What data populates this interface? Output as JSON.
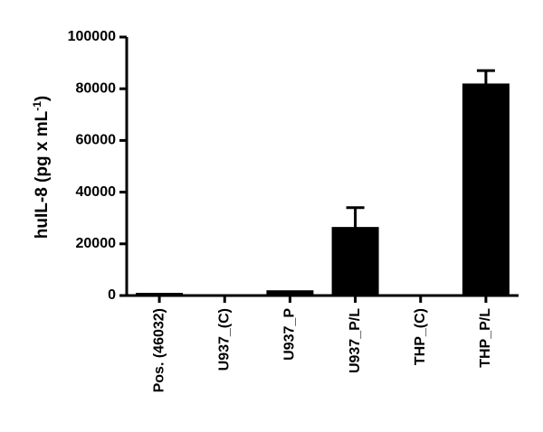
{
  "chart_data": {
    "type": "bar",
    "ylabel": "huIL-8 (pg x mL",
    "ylabel_superscript": "-1",
    "ylabel_suffix": ")",
    "categories": [
      "Pos. (46032)",
      "U937_(C)",
      "U937_P",
      "U937_P/L",
      "THP_(C)",
      "THP_P/L"
    ],
    "values": [
      500,
      0,
      1500,
      26000,
      0,
      81500
    ],
    "errors": [
      0,
      0,
      0,
      8000,
      0,
      5500
    ],
    "color": "#000000",
    "ylim": [
      0,
      100000
    ],
    "yticks": [
      0,
      20000,
      40000,
      60000,
      80000,
      100000
    ],
    "grid": false
  }
}
